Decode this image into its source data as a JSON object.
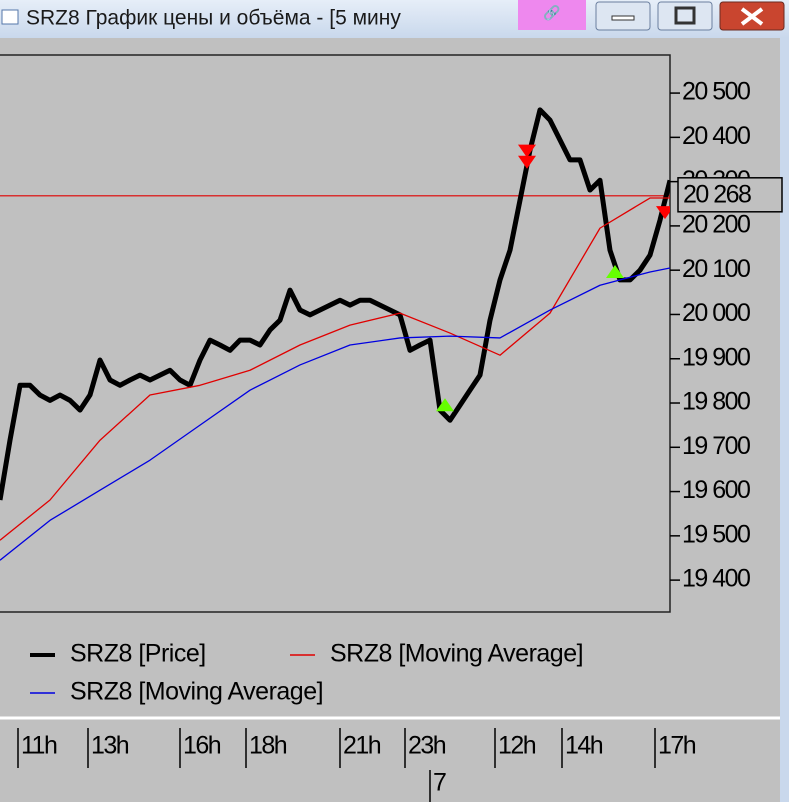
{
  "window": {
    "title": "SRZ8 График цены и объёма - [5 мину"
  },
  "chart_data": {
    "type": "line",
    "xlim": [
      0,
      67
    ],
    "ylim": [
      19328,
      20586
    ],
    "yticks": [
      {
        "value": 19400,
        "label": "19 400"
      },
      {
        "value": 19500,
        "label": "19 500"
      },
      {
        "value": 19600,
        "label": "19 600"
      },
      {
        "value": 19700,
        "label": "19 700"
      },
      {
        "value": 19800,
        "label": "19 800"
      },
      {
        "value": 19900,
        "label": "19 900"
      },
      {
        "value": 20000,
        "label": "20 000"
      },
      {
        "value": 20100,
        "label": "20 100"
      },
      {
        "value": 20200,
        "label": "20 200"
      },
      {
        "value": 20300,
        "label": "20 300"
      },
      {
        "value": 20400,
        "label": "20 400"
      },
      {
        "value": 20500,
        "label": "20 500"
      }
    ],
    "xticks": [
      {
        "value": 1.8,
        "label": "11h"
      },
      {
        "value": 8.8,
        "label": "13h"
      },
      {
        "value": 18,
        "label": "16h"
      },
      {
        "value": 24.6,
        "label": "18h"
      },
      {
        "value": 34,
        "label": "21h"
      },
      {
        "value": 40.5,
        "label": "23h"
      },
      {
        "value": 49.5,
        "label": "12h"
      },
      {
        "value": 56.2,
        "label": "14h"
      },
      {
        "value": 65.5,
        "label": "17h"
      }
    ],
    "date_ticks": [
      {
        "value": 43,
        "label": "7"
      }
    ],
    "current_price": {
      "value": 20268,
      "label": "20 268",
      "color": "#e00000"
    },
    "series": [
      {
        "name": "SRZ8 [Price]",
        "color": "#000000",
        "x": [
          0,
          1,
          2,
          3,
          4,
          5,
          6,
          7,
          8,
          9,
          10,
          11,
          12,
          13,
          14,
          15,
          16,
          17,
          18,
          19,
          20,
          21,
          22,
          23,
          24,
          25,
          26,
          27,
          28,
          29,
          30,
          31,
          32,
          33,
          34,
          35,
          36,
          37,
          38,
          39,
          40,
          41,
          42,
          43,
          44,
          45,
          46,
          47,
          48,
          49,
          50,
          51,
          52,
          53,
          54,
          55,
          56,
          57,
          58,
          59,
          60,
          61,
          62,
          63,
          64,
          65,
          66,
          67
        ],
        "values": [
          19581,
          19716,
          19840,
          19840,
          19818,
          19806,
          19818,
          19806,
          19784,
          19818,
          19897,
          19852,
          19840,
          19852,
          19863,
          19852,
          19863,
          19874,
          19852,
          19840,
          19897,
          19942,
          19931,
          19919,
          19942,
          19942,
          19931,
          19965,
          19987,
          20055,
          20010,
          19999,
          20010,
          20021,
          20032,
          20021,
          20032,
          20032,
          20021,
          20010,
          19999,
          19919,
          19931,
          19942,
          19784,
          19761,
          19795,
          19829,
          19863,
          19987,
          20078,
          20145,
          20258,
          20371,
          20462,
          20439,
          20394,
          20349,
          20349,
          20281,
          20303,
          20145,
          20078,
          20078,
          20100,
          20134,
          20213,
          20303
        ]
      },
      {
        "name": "SRZ8 [Moving Average]",
        "color": "#e00000",
        "x": [
          0,
          5,
          10,
          15,
          20,
          25,
          30,
          35,
          40,
          45,
          50,
          55,
          60,
          65,
          67
        ],
        "values": [
          19490,
          19581,
          19716,
          19818,
          19840,
          19874,
          19931,
          19976,
          20003,
          19958,
          19908,
          20003,
          20195,
          20263,
          20263
        ]
      },
      {
        "name": "SRZ8 [Moving Average]",
        "color": "#0000e0",
        "x": [
          0,
          5,
          10,
          15,
          20,
          25,
          30,
          35,
          40,
          45,
          50,
          55,
          60,
          65,
          67
        ],
        "values": [
          19445,
          19535,
          19603,
          19671,
          19750,
          19829,
          19886,
          19931,
          19947,
          19951,
          19947,
          20010,
          20066,
          20096,
          20105
        ]
      }
    ],
    "buy_signals": {
      "color": "#66ff00",
      "x": [
        44.5,
        61.5
      ],
      "values": [
        19795,
        20096
      ]
    },
    "sell_signals": {
      "color": "#ff0000",
      "x": [
        52.7,
        52.7,
        66.5
      ],
      "values": [
        20370,
        20345,
        20231
      ]
    }
  }
}
